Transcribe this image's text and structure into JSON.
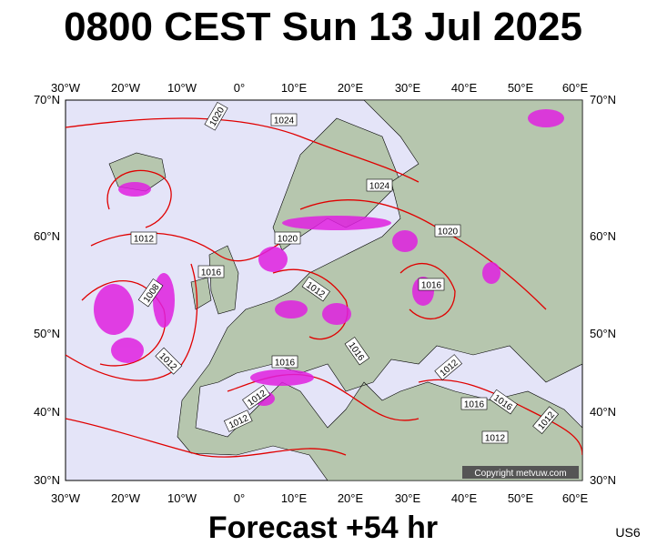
{
  "header": {
    "title": "0800 CEST Sun 13 Jul 2025"
  },
  "axes": {
    "longitudes": [
      "30°W",
      "20°W",
      "10°W",
      "0°",
      "10°E",
      "20°E",
      "30°E",
      "40°E",
      "50°E",
      "60°E"
    ],
    "latitudes": [
      "70°N",
      "60°N",
      "50°N",
      "40°N",
      "30°N"
    ]
  },
  "isobars": {
    "labels": [
      "1020",
      "1024",
      "1012",
      "1016",
      "1008",
      "1012",
      "1020",
      "1012",
      "1016",
      "1024",
      "1020",
      "1016",
      "1016",
      "1012",
      "1012",
      "1012",
      "1016",
      "1016",
      "1012",
      "1012"
    ]
  },
  "copyright": "Copyright metvuw.com",
  "footer": {
    "forecast": "Forecast +54 hr",
    "code": "US6"
  }
}
